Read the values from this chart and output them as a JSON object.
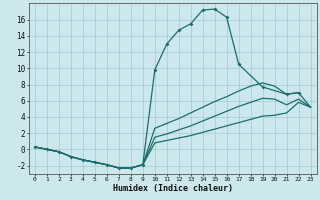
{
  "xlabel": "Humidex (Indice chaleur)",
  "bg_color": "#cce8ec",
  "grid_color": "#aad0d6",
  "line_color": "#1a6e6e",
  "xlim": [
    -0.5,
    23.5
  ],
  "ylim": [
    -3,
    18
  ],
  "xticks": [
    0,
    1,
    2,
    3,
    4,
    5,
    6,
    7,
    8,
    9,
    10,
    11,
    12,
    13,
    14,
    15,
    16,
    17,
    18,
    19,
    20,
    21,
    22,
    23
  ],
  "yticks": [
    -2,
    0,
    2,
    4,
    6,
    8,
    10,
    12,
    14,
    16
  ],
  "line1_x": [
    0,
    1,
    2,
    3,
    4,
    5,
    6,
    7,
    8,
    9,
    10,
    11,
    12,
    13,
    14,
    15,
    16,
    17,
    19,
    21,
    22
  ],
  "line1_y": [
    0.3,
    0.0,
    -0.3,
    -0.9,
    -1.3,
    -1.6,
    -1.9,
    -2.3,
    -2.3,
    -1.9,
    9.8,
    13.0,
    14.7,
    15.5,
    17.2,
    17.3,
    16.3,
    10.5,
    7.7,
    6.8,
    7.0
  ],
  "line2_x": [
    0,
    1,
    2,
    3,
    4,
    5,
    6,
    7,
    8,
    9,
    10,
    11,
    12,
    13,
    14,
    15,
    16,
    17,
    18,
    19,
    20,
    21,
    22,
    23
  ],
  "line2_y": [
    0.3,
    0.0,
    -0.3,
    -0.9,
    -1.3,
    -1.6,
    -1.9,
    -2.3,
    -2.3,
    -1.9,
    2.6,
    3.2,
    3.8,
    4.5,
    5.2,
    5.9,
    6.5,
    7.2,
    7.8,
    8.2,
    7.8,
    6.8,
    7.0,
    5.2
  ],
  "line3_x": [
    0,
    1,
    2,
    3,
    4,
    5,
    6,
    7,
    8,
    9,
    10,
    11,
    12,
    13,
    14,
    15,
    16,
    17,
    18,
    19,
    20,
    21,
    22,
    23
  ],
  "line3_y": [
    0.3,
    0.0,
    -0.3,
    -0.9,
    -1.3,
    -1.6,
    -1.9,
    -2.3,
    -2.3,
    -1.9,
    1.5,
    1.9,
    2.4,
    2.9,
    3.5,
    4.1,
    4.7,
    5.3,
    5.8,
    6.3,
    6.2,
    5.5,
    6.2,
    5.2
  ],
  "line4_x": [
    0,
    1,
    2,
    3,
    4,
    5,
    6,
    7,
    8,
    9,
    10,
    11,
    12,
    13,
    14,
    15,
    16,
    17,
    18,
    19,
    20,
    21,
    22,
    23
  ],
  "line4_y": [
    0.3,
    0.0,
    -0.3,
    -0.9,
    -1.3,
    -1.6,
    -1.9,
    -2.3,
    -2.3,
    -1.9,
    0.8,
    1.1,
    1.4,
    1.7,
    2.1,
    2.5,
    2.9,
    3.3,
    3.7,
    4.1,
    4.2,
    4.5,
    5.8,
    5.2
  ]
}
